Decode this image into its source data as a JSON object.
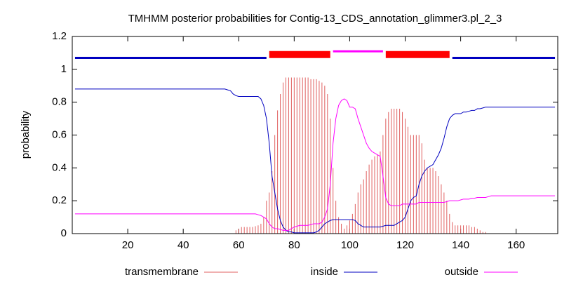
{
  "chart_data": {
    "type": "line",
    "title": "TMHMM posterior probabilities for Contig-13_CDS_annotation_glimmer3.pl_2_3",
    "ylabel": "probability",
    "xlim": [
      0,
      175
    ],
    "xticks": [
      20,
      40,
      60,
      80,
      100,
      120,
      140,
      160
    ],
    "ylim": [
      0,
      1.2
    ],
    "yticks": [
      0,
      0.2,
      0.4,
      0.6,
      0.8,
      1,
      1.2
    ],
    "x": [
      1,
      2,
      3,
      4,
      5,
      6,
      7,
      8,
      9,
      10,
      11,
      12,
      13,
      14,
      15,
      16,
      17,
      18,
      19,
      20,
      21,
      22,
      23,
      24,
      25,
      26,
      27,
      28,
      29,
      30,
      31,
      32,
      33,
      34,
      35,
      36,
      37,
      38,
      39,
      40,
      41,
      42,
      43,
      44,
      45,
      46,
      47,
      48,
      49,
      50,
      51,
      52,
      53,
      54,
      55,
      56,
      57,
      58,
      59,
      60,
      61,
      62,
      63,
      64,
      65,
      66,
      67,
      68,
      69,
      70,
      71,
      72,
      73,
      74,
      75,
      76,
      77,
      78,
      79,
      80,
      81,
      82,
      83,
      84,
      85,
      86,
      87,
      88,
      89,
      90,
      91,
      92,
      93,
      94,
      95,
      96,
      97,
      98,
      99,
      100,
      101,
      102,
      103,
      104,
      105,
      106,
      107,
      108,
      109,
      110,
      111,
      112,
      113,
      114,
      115,
      116,
      117,
      118,
      119,
      120,
      121,
      122,
      123,
      124,
      125,
      126,
      127,
      128,
      129,
      130,
      131,
      132,
      133,
      134,
      135,
      136,
      137,
      138,
      139,
      140,
      141,
      142,
      143,
      144,
      145,
      146,
      147,
      148,
      149,
      150,
      151,
      152,
      153,
      154,
      155,
      156,
      157,
      158,
      159,
      160,
      161,
      162,
      163,
      164,
      165,
      166,
      167,
      168,
      169,
      170,
      171,
      172,
      173,
      174
    ],
    "series": [
      {
        "name": "transmembrane",
        "color": "#e06060",
        "style": "impulses",
        "values": [
          0,
          0,
          0,
          0,
          0,
          0,
          0,
          0,
          0,
          0,
          0,
          0,
          0,
          0,
          0,
          0,
          0,
          0,
          0,
          0,
          0,
          0,
          0,
          0,
          0,
          0,
          0,
          0,
          0,
          0,
          0,
          0,
          0,
          0,
          0,
          0,
          0,
          0,
          0,
          0,
          0,
          0,
          0,
          0,
          0,
          0,
          0,
          0,
          0,
          0,
          0,
          0,
          0,
          0,
          0,
          0,
          0,
          0,
          0.02,
          0.03,
          0.04,
          0.04,
          0.04,
          0.04,
          0.04,
          0.045,
          0.05,
          0.06,
          0.1,
          0.2,
          0.25,
          0.38,
          0.6,
          0.75,
          0.85,
          0.92,
          0.95,
          0.95,
          0.95,
          0.95,
          0.95,
          0.95,
          0.95,
          0.95,
          0.95,
          0.94,
          0.94,
          0.94,
          0.93,
          0.92,
          0.9,
          0.85,
          0.7,
          0.4,
          0.2,
          0.1,
          0.06,
          0.03,
          0.05,
          0.08,
          0.12,
          0.18,
          0.25,
          0.3,
          0.33,
          0.38,
          0.42,
          0.45,
          0.47,
          0.48,
          0.5,
          0.6,
          0.7,
          0.74,
          0.76,
          0.76,
          0.76,
          0.76,
          0.74,
          0.7,
          0.65,
          0.6,
          0.6,
          0.6,
          0.6,
          0.55,
          0.45,
          0.4,
          0.4,
          0.4,
          0.38,
          0.35,
          0.3,
          0.25,
          0.2,
          0.12,
          0.07,
          0.05,
          0.05,
          0.05,
          0.05,
          0.05,
          0.05,
          0.04,
          0.04,
          0.03,
          0.02,
          0.01,
          0.01,
          0,
          0,
          0,
          0,
          0,
          0,
          0,
          0,
          0,
          0,
          0,
          0,
          0,
          0,
          0,
          0,
          0,
          0,
          0,
          0,
          0,
          0,
          0,
          0,
          0
        ]
      },
      {
        "name": "inside",
        "color": "#0000c0",
        "style": "line",
        "values": [
          0.88,
          0.88,
          0.88,
          0.88,
          0.88,
          0.88,
          0.88,
          0.88,
          0.88,
          0.88,
          0.88,
          0.88,
          0.88,
          0.88,
          0.88,
          0.88,
          0.88,
          0.88,
          0.88,
          0.88,
          0.88,
          0.88,
          0.88,
          0.88,
          0.88,
          0.88,
          0.88,
          0.88,
          0.88,
          0.88,
          0.88,
          0.88,
          0.88,
          0.88,
          0.88,
          0.88,
          0.88,
          0.88,
          0.88,
          0.88,
          0.88,
          0.88,
          0.88,
          0.88,
          0.88,
          0.88,
          0.88,
          0.88,
          0.88,
          0.88,
          0.88,
          0.88,
          0.88,
          0.88,
          0.88,
          0.875,
          0.87,
          0.85,
          0.84,
          0.835,
          0.835,
          0.835,
          0.835,
          0.835,
          0.835,
          0.835,
          0.835,
          0.82,
          0.78,
          0.7,
          0.55,
          0.35,
          0.25,
          0.15,
          0.08,
          0.04,
          0.02,
          0.01,
          0.01,
          0.005,
          0.005,
          0.005,
          0.005,
          0.005,
          0.005,
          0.005,
          0.005,
          0.01,
          0.02,
          0.04,
          0.06,
          0.07,
          0.08,
          0.085,
          0.085,
          0.085,
          0.085,
          0.085,
          0.085,
          0.085,
          0.085,
          0.08,
          0.06,
          0.05,
          0.04,
          0.04,
          0.04,
          0.04,
          0.04,
          0.04,
          0.04,
          0.045,
          0.05,
          0.05,
          0.05,
          0.05,
          0.06,
          0.07,
          0.08,
          0.1,
          0.15,
          0.2,
          0.22,
          0.23,
          0.3,
          0.35,
          0.38,
          0.4,
          0.41,
          0.42,
          0.45,
          0.48,
          0.52,
          0.58,
          0.65,
          0.7,
          0.72,
          0.73,
          0.73,
          0.73,
          0.74,
          0.74,
          0.745,
          0.75,
          0.75,
          0.76,
          0.76,
          0.765,
          0.77,
          0.77,
          0.77,
          0.77,
          0.77,
          0.77,
          0.77,
          0.77,
          0.77,
          0.77,
          0.77,
          0.77,
          0.77,
          0.77,
          0.77,
          0.77,
          0.77,
          0.77,
          0.77,
          0.77,
          0.77,
          0.77,
          0.77,
          0.77,
          0.77,
          0.77
        ]
      },
      {
        "name": "outside",
        "color": "#ff00ff",
        "style": "line",
        "values": [
          0.12,
          0.12,
          0.12,
          0.12,
          0.12,
          0.12,
          0.12,
          0.12,
          0.12,
          0.12,
          0.12,
          0.12,
          0.12,
          0.12,
          0.12,
          0.12,
          0.12,
          0.12,
          0.12,
          0.12,
          0.12,
          0.12,
          0.12,
          0.12,
          0.12,
          0.12,
          0.12,
          0.12,
          0.12,
          0.12,
          0.12,
          0.12,
          0.12,
          0.12,
          0.12,
          0.12,
          0.12,
          0.12,
          0.12,
          0.12,
          0.12,
          0.12,
          0.12,
          0.12,
          0.12,
          0.12,
          0.12,
          0.12,
          0.12,
          0.12,
          0.12,
          0.12,
          0.12,
          0.12,
          0.12,
          0.12,
          0.12,
          0.12,
          0.12,
          0.12,
          0.12,
          0.12,
          0.12,
          0.12,
          0.12,
          0.12,
          0.115,
          0.11,
          0.1,
          0.09,
          0.06,
          0.04,
          0.03,
          0.03,
          0.025,
          0.02,
          0.02,
          0.02,
          0.03,
          0.04,
          0.045,
          0.05,
          0.05,
          0.05,
          0.05,
          0.055,
          0.06,
          0.06,
          0.06,
          0.07,
          0.1,
          0.15,
          0.3,
          0.55,
          0.7,
          0.78,
          0.81,
          0.82,
          0.81,
          0.77,
          0.77,
          0.76,
          0.7,
          0.65,
          0.6,
          0.55,
          0.52,
          0.5,
          0.49,
          0.48,
          0.47,
          0.35,
          0.22,
          0.18,
          0.17,
          0.17,
          0.17,
          0.17,
          0.18,
          0.18,
          0.18,
          0.18,
          0.18,
          0.18,
          0.19,
          0.19,
          0.19,
          0.19,
          0.19,
          0.19,
          0.19,
          0.19,
          0.19,
          0.19,
          0.195,
          0.2,
          0.2,
          0.2,
          0.2,
          0.205,
          0.21,
          0.21,
          0.21,
          0.215,
          0.215,
          0.22,
          0.22,
          0.22,
          0.22,
          0.225,
          0.23,
          0.23,
          0.23,
          0.23,
          0.23,
          0.23,
          0.23,
          0.23,
          0.23,
          0.23,
          0.23,
          0.23,
          0.23,
          0.23,
          0.23,
          0.23,
          0.23,
          0.23,
          0.23,
          0.23,
          0.23,
          0.23,
          0.23,
          0.23
        ]
      }
    ],
    "topology": [
      {
        "start": 1,
        "end": 70,
        "y": 1.07,
        "color": "#0000c0"
      },
      {
        "start": 71,
        "end": 93,
        "y": 1.09,
        "color": "#ff0000"
      },
      {
        "start": 94,
        "end": 112,
        "y": 1.11,
        "color": "#ff00ff"
      },
      {
        "start": 113,
        "end": 136,
        "y": 1.09,
        "color": "#ff0000"
      },
      {
        "start": 137,
        "end": 174,
        "y": 1.07,
        "color": "#0000c0"
      }
    ]
  }
}
